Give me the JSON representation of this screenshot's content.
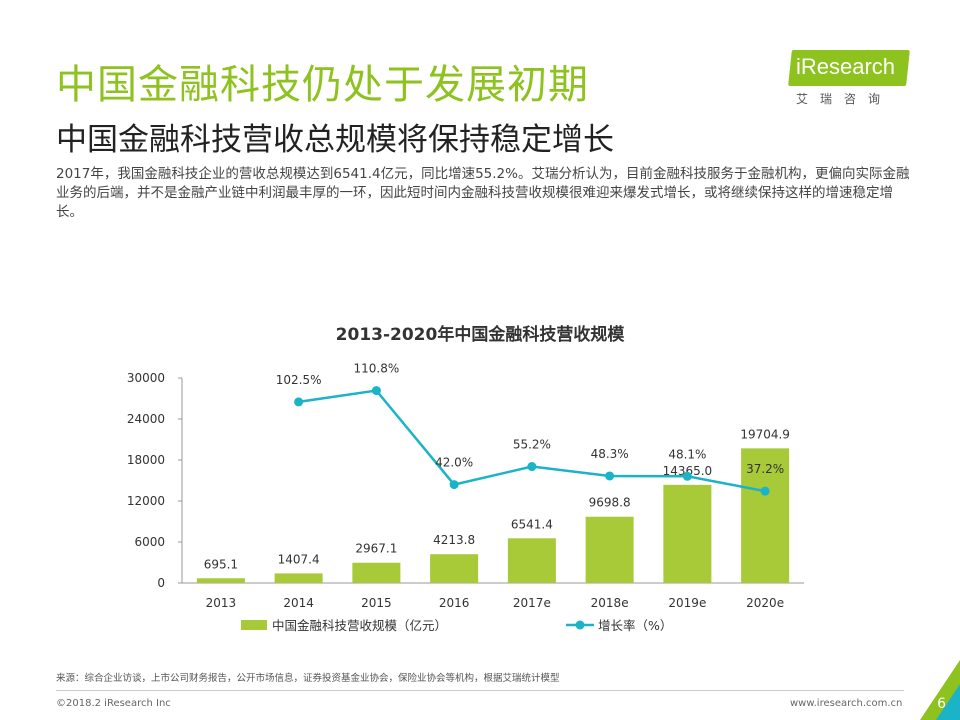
{
  "page": {
    "title": "中国金融科技仍处于发展初期",
    "subtitle": "中国金融科技营收总规模将保持稳定增长",
    "intro": "2017年，我国金融科技企业的营收总规模达到6541.4亿元，同比增速55.2%。艾瑞分析认为，目前金融科技服务于金融机构，更偏向实际金融业务的后端，并不是金融产业链中利润最丰厚的一环，因此短时间内金融科技营收规模很难迎来爆发式增长，或将继续保持这样的增速稳定增长。",
    "source": "来源：综合企业访谈，上市公司财务报告，公开市场信息，证券投资基金业协会，保险业协会等机构，根据艾瑞统计模型",
    "copyright": "©2018.2 iResearch Inc",
    "website": "www.iresearch.com.cn",
    "page_number": "6"
  },
  "logo": {
    "text": "iResearch",
    "sub": "艾瑞咨询"
  },
  "colors": {
    "title_green": "#8dc21f",
    "bar": "#a8c938",
    "line": "#1ab3c8"
  },
  "chart_data": {
    "type": "bar",
    "title": "2013-2020年中国金融科技营收规模",
    "categories": [
      "2013",
      "2014",
      "2015",
      "2016",
      "2017e",
      "2018e",
      "2019e",
      "2020e"
    ],
    "series": [
      {
        "name": "中国金融科技营收规模（亿元）",
        "type": "bar",
        "axis": "left",
        "values": [
          695.1,
          1407.4,
          2967.1,
          4213.8,
          6541.4,
          9698.8,
          14365.0,
          19704.9
        ],
        "labels": [
          "695.1",
          "1407.4",
          "2967.1",
          "4213.8",
          "6541.4",
          "9698.8",
          "14365.0",
          "19704.9"
        ]
      },
      {
        "name": "增长率（%）",
        "type": "line",
        "axis": "right",
        "values": [
          null,
          102.5,
          110.8,
          42.0,
          55.2,
          48.3,
          48.1,
          37.2
        ],
        "labels": [
          "",
          "102.5%",
          "110.8%",
          "42.0%",
          "55.2%",
          "48.3%",
          "48.1%",
          "37.2%"
        ]
      }
    ],
    "y_left": {
      "ylim": [
        0,
        30000
      ],
      "ticks": [
        "0",
        "6000",
        "12000",
        "18000",
        "24000",
        "30000"
      ]
    },
    "y_right": {
      "ylim": [
        -30,
        120
      ],
      "ticks_visible": false
    },
    "grid": false,
    "legend_position": "bottom"
  }
}
